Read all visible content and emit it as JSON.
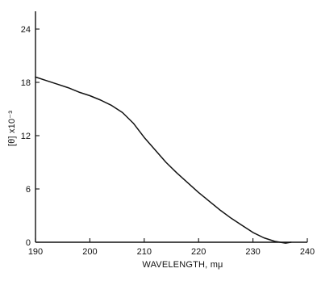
{
  "chart_data": {
    "type": "line",
    "title": "",
    "xlabel": "WAVELENGTH, mμ",
    "ylabel": "[θ] x10⁻³",
    "xlim": [
      190,
      240
    ],
    "ylim": [
      0,
      26
    ],
    "xticks": [
      190,
      200,
      210,
      220,
      230,
      240
    ],
    "yticks": [
      0,
      6,
      12,
      18,
      24
    ],
    "grid": false,
    "colors": {
      "line": "#111111",
      "axis": "#111111"
    },
    "series": [
      {
        "x": [
          190,
          192,
          194,
          196,
          198,
          200,
          202,
          204,
          206,
          208,
          210,
          212,
          214,
          216,
          218,
          220,
          222,
          224,
          226,
          228,
          230,
          232,
          234,
          236,
          237
        ],
        "values": [
          18.6,
          18.2,
          17.8,
          17.4,
          16.9,
          16.5,
          16.0,
          15.4,
          14.6,
          13.4,
          11.8,
          10.4,
          9.0,
          7.8,
          6.7,
          5.6,
          4.6,
          3.6,
          2.7,
          1.9,
          1.1,
          0.5,
          0.1,
          -0.1,
          0.0
        ]
      }
    ]
  }
}
